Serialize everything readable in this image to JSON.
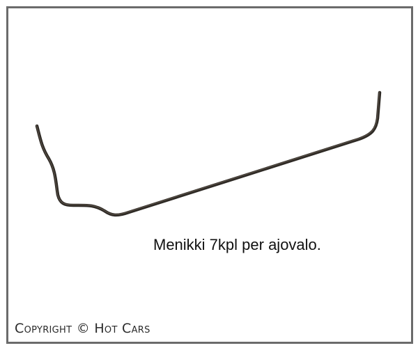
{
  "product": {
    "caption": "Menikki 7kpl per ajovalo.",
    "image_subject": "wire-spring-clip"
  },
  "footer": {
    "copyright": "Copyright © Hot Cars"
  },
  "colors": {
    "frame": "#6b6b6b",
    "wire": "#2e2a25"
  }
}
